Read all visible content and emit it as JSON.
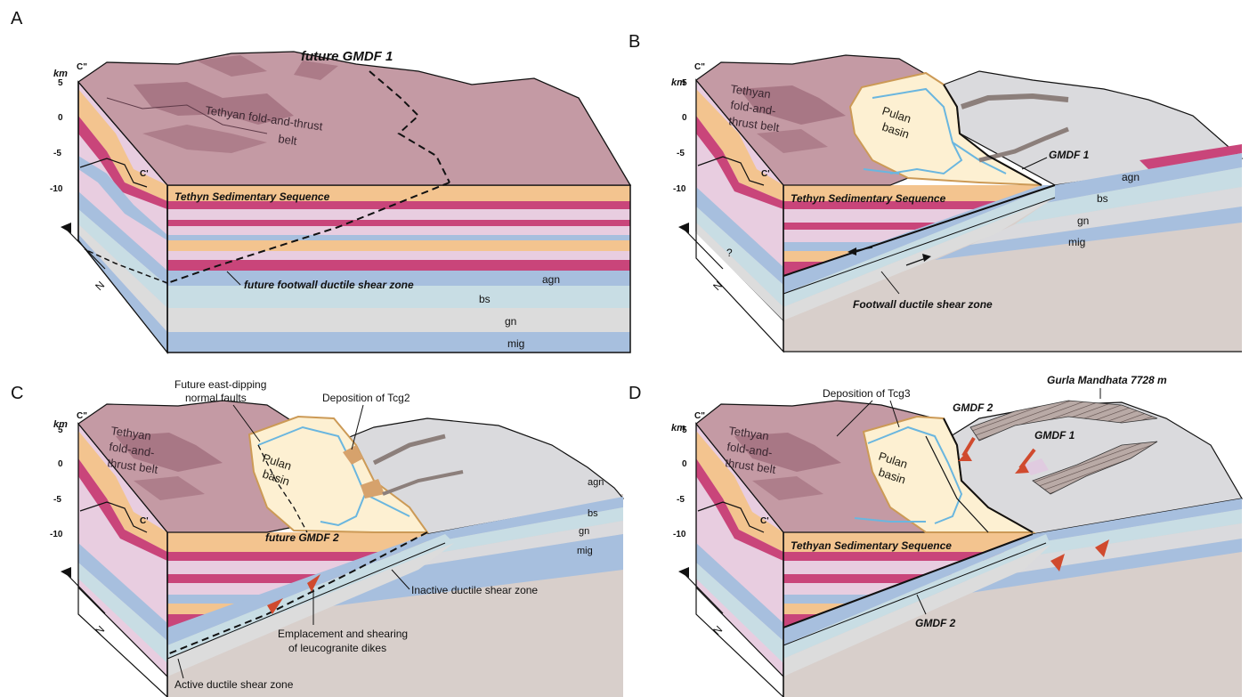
{
  "panels": [
    {
      "letter": "A",
      "km_label": "km",
      "section_top": "C\"",
      "section_mid": "C'",
      "ticks": [
        "5",
        "0",
        "-5",
        "-10"
      ],
      "fold_belt": [
        "Tethyan fold-and-thrust",
        "belt"
      ],
      "sequence": "Tethyn Sedimentary Sequence",
      "fault_title": "future GMDF 1",
      "shear_zone": "future footwall ductile shear zone",
      "layers": [
        "agn",
        "bs",
        "gn",
        "mig"
      ],
      "north": "N"
    },
    {
      "letter": "B",
      "km_label": "km",
      "section_top": "C\"",
      "section_mid": "C'",
      "ticks": [
        "5",
        "0",
        "-5",
        "-10"
      ],
      "fold_belt": [
        "Tethyan",
        "fold-and-",
        "thrust belt"
      ],
      "basin": [
        "Pulan",
        "basin"
      ],
      "fault": "GMDF 1",
      "sequence": "Tethyn Sedimentary Sequence",
      "shear_zone": "Footwall ductile shear zone",
      "query": "?",
      "layers": [
        "agn",
        "bs",
        "gn",
        "mig"
      ],
      "north": "N"
    },
    {
      "letter": "C",
      "km_label": "km",
      "section_top": "C\"",
      "section_mid": "C'",
      "ticks": [
        "5",
        "0",
        "-5",
        "-10"
      ],
      "fold_belt": [
        "Tethyan",
        "fold-and-",
        "thrust belt"
      ],
      "basin": [
        "Pulan",
        "basin"
      ],
      "future_faults": [
        "Future east-dipping",
        "normal faults"
      ],
      "deposition": "Deposition of Tcg2",
      "future_fault": "future GMDF 2",
      "inactive": "Inactive ductile shear zone",
      "emplacement": [
        "Emplacement and shearing",
        "of leucogranite dikes"
      ],
      "active": "Active ductile shear zone",
      "layers": [
        "agn",
        "bs",
        "gn",
        "mig"
      ],
      "north": "N"
    },
    {
      "letter": "D",
      "km_label": "km",
      "section_top": "C\"",
      "section_mid": "C'",
      "ticks": [
        "5",
        "0",
        "-5",
        "-10"
      ],
      "fold_belt": [
        "Tethyan",
        "fold-and-",
        "thrust belt"
      ],
      "basin": [
        "Pulan",
        "basin"
      ],
      "deposition": "Deposition of Tcg3",
      "peak": "Gurla Mandhata 7728 m",
      "fault2": "GMDF 2",
      "fault1": "GMDF 1",
      "sequence": "Tethyan Sedimentary Sequence",
      "fault2_low": "GMDF 2",
      "north": "N"
    }
  ],
  "colors": {
    "fold_belt_top": "#c49aa4",
    "fold_belt_dark": "#9c6877",
    "tethyan_orange": "#f3c48f",
    "magenta": "#c9457a",
    "lilac": "#e8cde0",
    "blue_layer": "#a7bfde",
    "light_blue": "#c8dde4",
    "grey_layer": "#dcdcdc",
    "basement": "#d8cfcb",
    "basin_fill": "#fdf0d2",
    "river": "#6ab6df",
    "basin_edge": "#cc9a56",
    "hanging_grey": "#dadadd",
    "red_arrow": "#d04a2e"
  }
}
